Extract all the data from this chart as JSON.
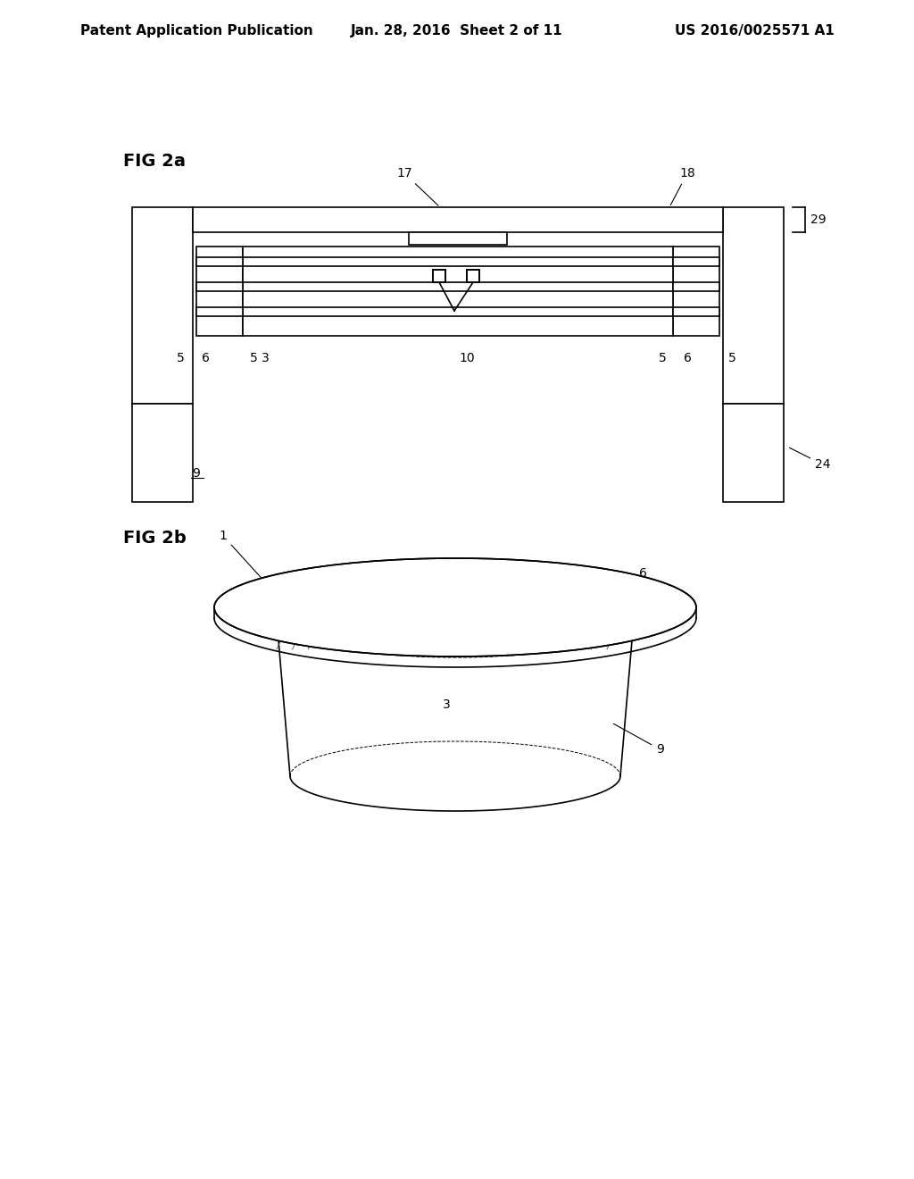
{
  "background_color": "#ffffff",
  "header_left": "Patent Application Publication",
  "header_center": "Jan. 28, 2016  Sheet 2 of 11",
  "header_right": "US 2016/0025571 A1",
  "header_fontsize": 11,
  "fig2a_label": "FIG 2a",
  "fig2b_label": "FIG 2b",
  "label_fontsize": 14,
  "line_color": "#000000",
  "line_width": 1.2
}
